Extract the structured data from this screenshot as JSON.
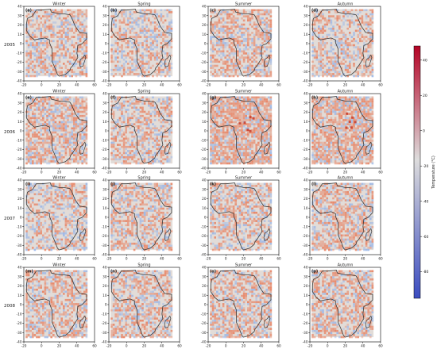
{
  "chart_data": {
    "type": "heatmap",
    "seasons": [
      "Winter",
      "Spring",
      "Summer",
      "Autumn"
    ],
    "years": [
      "2005",
      "2006",
      "2007",
      "2008"
    ],
    "panel_letters": [
      "(a)",
      "(b)",
      "(c)",
      "(d)",
      "(e)",
      "(f)",
      "(g)",
      "(h)",
      "(i)",
      "(j)",
      "(k)",
      "(l)",
      "(m)",
      "(n)",
      "(o)",
      "(p)"
    ],
    "x_ticks": [
      "-20",
      "0",
      "20",
      "40",
      "60"
    ],
    "y_ticks": [
      "40",
      "30",
      "20",
      "10",
      "0",
      "-10",
      "-20",
      "-30",
      "-40"
    ],
    "xlim": [
      -20,
      60
    ],
    "ylim": [
      -40,
      40
    ],
    "colorbar": {
      "label": "Temperature (°C)",
      "ticks": [
        "40",
        "20",
        "0",
        "-20",
        "-40",
        "-60",
        "-80"
      ],
      "range": [
        -95,
        48
      ],
      "colors": [
        "#3b4cc0",
        "#dddcdc",
        "#b40426"
      ]
    },
    "panel_colors": {
      "background": "#e2dcd8",
      "warm": "#e8805f",
      "cool": "#94b3e8",
      "hot": "#c9402f",
      "outline": "#3a3a3a"
    },
    "warm_bias": [
      [
        0.35,
        0.3,
        0.4,
        0.33
      ],
      [
        0.45,
        0.33,
        0.62,
        0.58
      ],
      [
        0.3,
        0.38,
        0.36,
        0.4
      ],
      [
        0.4,
        0.38,
        0.4,
        0.42
      ]
    ],
    "africa_outline_lonlat": [
      [
        -17,
        21
      ],
      [
        -16,
        27
      ],
      [
        -10,
        30
      ],
      [
        -6,
        36
      ],
      [
        0,
        36
      ],
      [
        10,
        37
      ],
      [
        11,
        34
      ],
      [
        20,
        32
      ],
      [
        25,
        32
      ],
      [
        32,
        31
      ],
      [
        34,
        28
      ],
      [
        38,
        19
      ],
      [
        43,
        12
      ],
      [
        51,
        11
      ],
      [
        51,
        5
      ],
      [
        46,
        0
      ],
      [
        41,
        -2
      ],
      [
        40,
        -10
      ],
      [
        41,
        -15
      ],
      [
        35,
        -24
      ],
      [
        33,
        -26
      ],
      [
        32,
        -29
      ],
      [
        27,
        -33
      ],
      [
        20,
        -35
      ],
      [
        18,
        -33
      ],
      [
        16,
        -28
      ],
      [
        12,
        -19
      ],
      [
        12,
        -6
      ],
      [
        9,
        1
      ],
      [
        9,
        4
      ],
      [
        4,
        6
      ],
      [
        -3,
        5
      ],
      [
        -8,
        4
      ],
      [
        -13,
        8
      ],
      [
        -17,
        14
      ],
      [
        -17,
        21
      ]
    ],
    "madagascar_outline_lonlat": [
      [
        49,
        -12
      ],
      [
        50,
        -15
      ],
      [
        47,
        -24
      ],
      [
        44,
        -25
      ],
      [
        43,
        -22
      ],
      [
        44,
        -17
      ],
      [
        47,
        -15
      ],
      [
        49,
        -12
      ]
    ]
  }
}
